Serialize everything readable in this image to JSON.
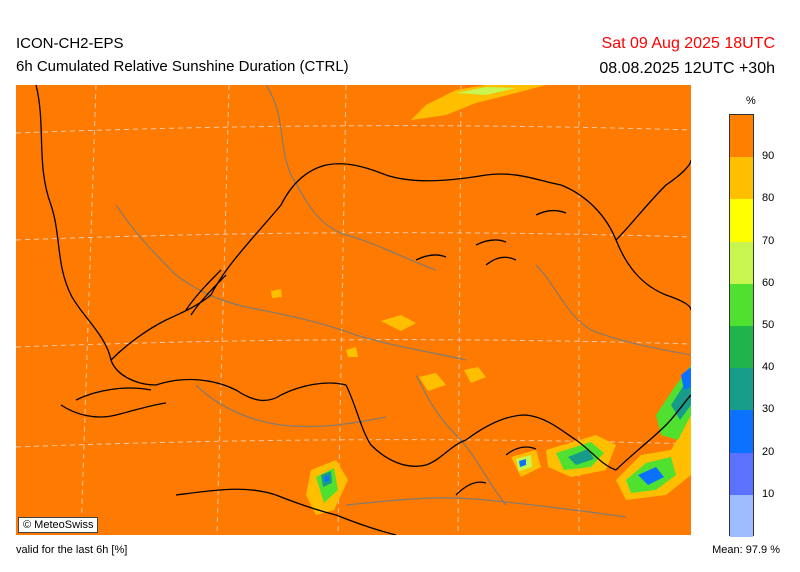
{
  "header": {
    "model": "ICON-CH2-EPS",
    "product": "6h Cumulated Relative Sunshine Duration (CTRL)",
    "valid_date": "Sat 09 Aug 2025 18UTC",
    "run_info": "08.08.2025 12UTC +30h",
    "valid_date_color": "#ff0000"
  },
  "map": {
    "background_color": "#ff7a00",
    "border_color": "#000000",
    "river_color": "#8a7a6a",
    "grid_color": "#e8c8a8",
    "grid_style": "dashed",
    "copyright": "© MeteoSwiss"
  },
  "legend": {
    "unit": "%",
    "colors": [
      "#ff7f00",
      "#ffbf00",
      "#ffff00",
      "#c8f550",
      "#50e030",
      "#21b44b",
      "#179c8a",
      "#0a72ff",
      "#5a72ff",
      "#9ebbff"
    ],
    "tick_labels": [
      "90",
      "80",
      "70",
      "60",
      "50",
      "40",
      "30",
      "20",
      "10"
    ]
  },
  "footer": {
    "validity": "valid for the last 6h [%]",
    "mean_label": "Mean:",
    "mean_value": "97.9 %"
  }
}
